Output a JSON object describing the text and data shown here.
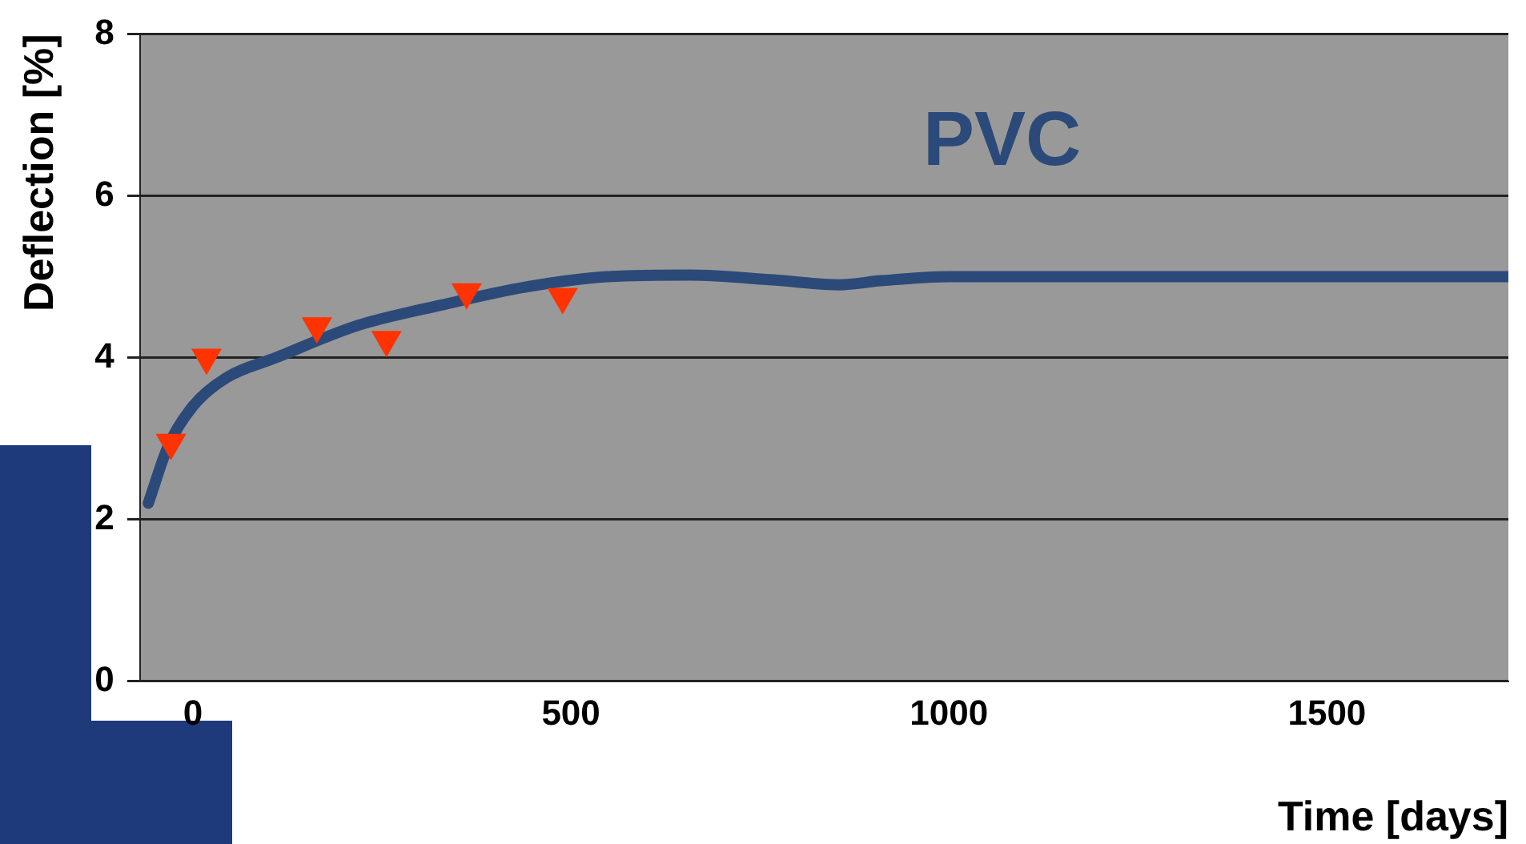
{
  "chart_data": {
    "type": "line",
    "xlabel": "Time [days]",
    "ylabel": "Deflection [%]",
    "xlim": [
      -70,
      1740
    ],
    "xticks": [
      0,
      500,
      1000,
      1500
    ],
    "ylim": [
      0,
      8
    ],
    "yticks": [
      0,
      2,
      4,
      6,
      8
    ],
    "grid": "y",
    "legend": false,
    "line_style": "solid",
    "series": [
      {
        "name": "PVC",
        "type": "line",
        "color": "#2b4a7a",
        "marker": "none",
        "x": [
          -59,
          -33,
          0,
          44,
          110,
          219,
          329,
          439,
          548,
          658,
          768,
          855,
          910,
          1000,
          1740
        ],
        "values": [
          2.2,
          2.9,
          3.4,
          3.75,
          4.0,
          4.4,
          4.65,
          4.87,
          5.0,
          5.02,
          4.96,
          4.9,
          4.95,
          5.0,
          5.0
        ]
      },
      {
        "type": "scatter",
        "color": "#ff3300",
        "marker": "triangle",
        "x": [
          -29,
          18,
          164,
          256,
          362,
          489
        ],
        "values": [
          2.95,
          4.0,
          4.39,
          4.22,
          4.81,
          4.75
        ]
      }
    ]
  }
}
